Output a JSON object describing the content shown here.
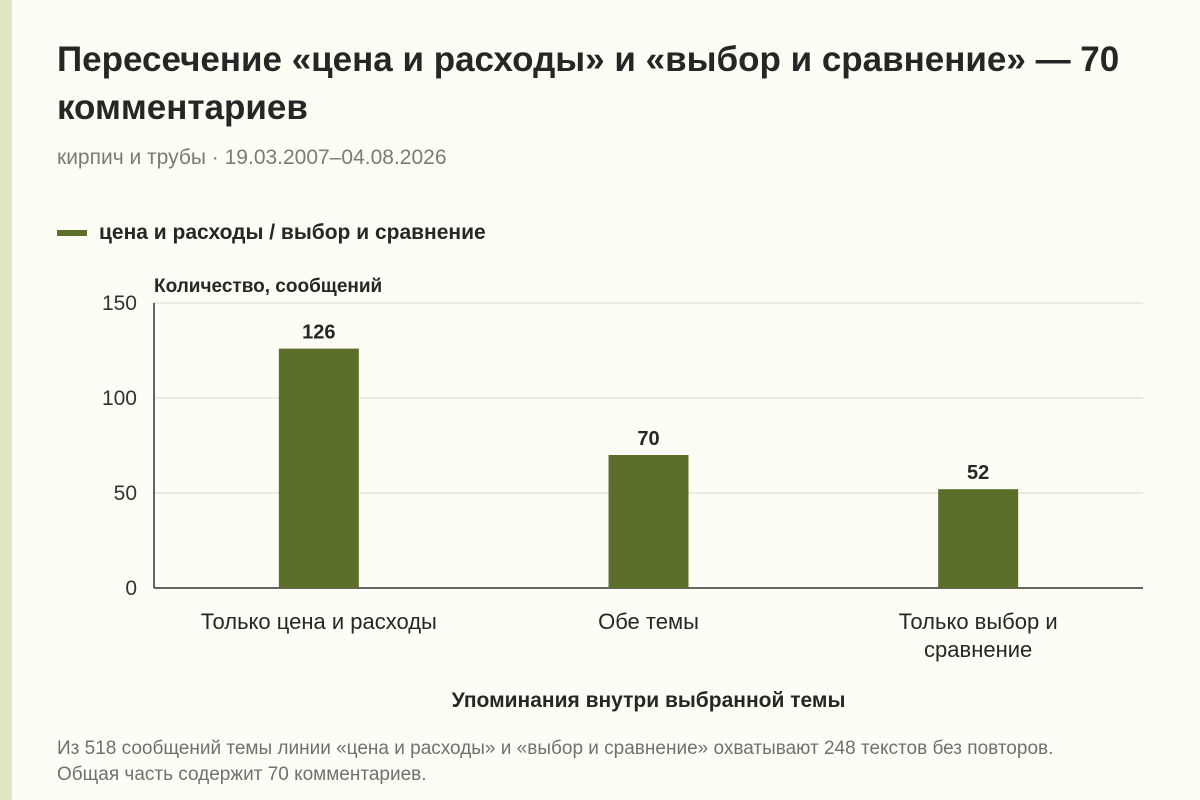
{
  "title": "Пересечение «цена и расходы» и «выбор и сравнение» — 70 комментариев",
  "subtitle": "кирпич и трубы · 19.03.2007–04.08.2026",
  "legend": {
    "label": "цена и расходы / выбор и сравнение",
    "color": "#5b6f2a"
  },
  "colors": {
    "bar": "#5b6f2a",
    "grid": "#d9d9d0",
    "axis": "#333333",
    "background": "#fdfdf5",
    "stripe": "#dfe6c2"
  },
  "chart_data": {
    "type": "bar",
    "title": "",
    "xlabel": "Упоминания внутри выбранной темы",
    "ylabel": "Количество, сообщений",
    "ylim": [
      0,
      150
    ],
    "yticks": [
      0,
      50,
      100,
      150
    ],
    "grid": true,
    "legend_position": "top-left",
    "categories": [
      [
        "Только цена и расходы"
      ],
      [
        "Обе темы"
      ],
      [
        "Только выбор и",
        "сравнение"
      ]
    ],
    "series": [
      {
        "name": "цена и расходы / выбор и сравнение",
        "values": [
          126,
          70,
          52
        ]
      }
    ]
  },
  "footnote": "Из 518 сообщений темы линии «цена и расходы» и «выбор и сравнение» охватывают 248 текстов без повторов. Общая часть содержит 70 комментариев."
}
